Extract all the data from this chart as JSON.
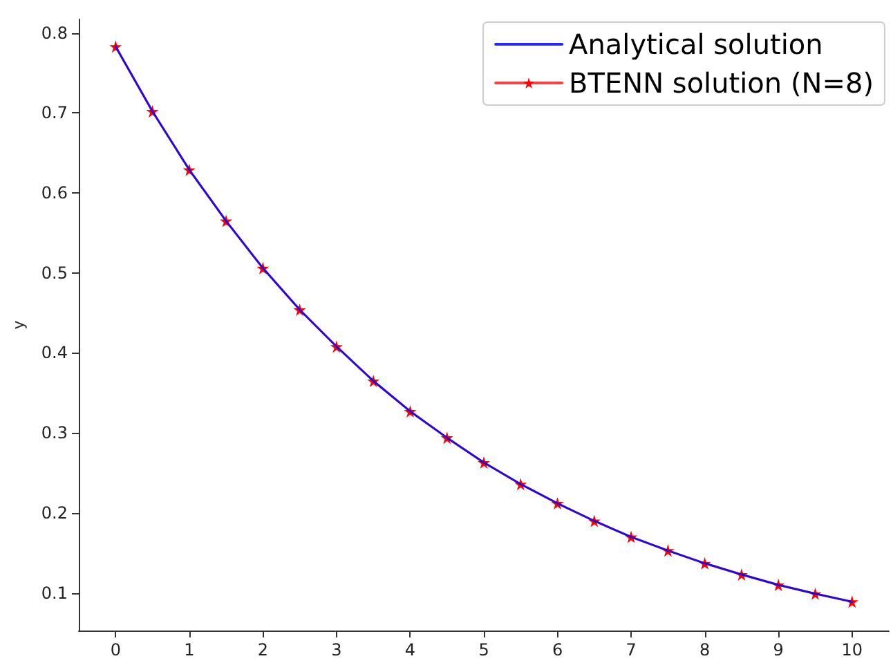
{
  "chart_data": {
    "type": "line",
    "ylabel": "y",
    "x": [
      0,
      0.5,
      1,
      1.5,
      2,
      2.5,
      3,
      3.5,
      4,
      4.5,
      5,
      5.5,
      6,
      6.5,
      7,
      7.5,
      8,
      8.5,
      9,
      9.5,
      10
    ],
    "series": [
      {
        "name": "Analytical solution",
        "color": "#0000ff",
        "marker": "none",
        "values": [
          0.783,
          0.702,
          0.629,
          0.565,
          0.506,
          0.454,
          0.408,
          0.365,
          0.327,
          0.294,
          0.263,
          0.236,
          0.212,
          0.19,
          0.17,
          0.153,
          0.137,
          0.123,
          0.11,
          0.099,
          0.089
        ]
      },
      {
        "name": "BTENN solution (Ν=8)",
        "color": "#ff0000",
        "marker": "star",
        "values": [
          0.783,
          0.702,
          0.629,
          0.565,
          0.506,
          0.454,
          0.408,
          0.365,
          0.327,
          0.294,
          0.263,
          0.236,
          0.212,
          0.19,
          0.17,
          0.153,
          0.137,
          0.123,
          0.11,
          0.099,
          0.089
        ]
      }
    ],
    "xlim": [
      -0.5,
      10.5
    ],
    "xticks": [
      0,
      1,
      2,
      3,
      4,
      5,
      6,
      7,
      8,
      9,
      10
    ],
    "ylim": [
      0.053,
      0.817
    ],
    "yticks": [
      0.1,
      0.2,
      0.3,
      0.4,
      0.5,
      0.6,
      0.7,
      0.8
    ],
    "grid": false,
    "legend": "top right"
  }
}
